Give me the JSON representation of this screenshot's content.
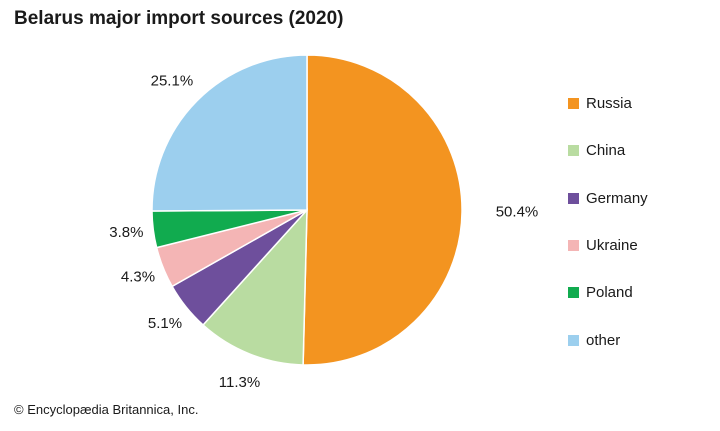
{
  "chart_data": {
    "type": "pie",
    "title": "Belarus major import sources (2020)",
    "categories": [
      "Russia",
      "China",
      "Germany",
      "Ukraine",
      "Poland",
      "other"
    ],
    "values": [
      50.4,
      11.3,
      5.1,
      4.3,
      3.8,
      25.1
    ],
    "value_labels": [
      "50.4%",
      "11.3%",
      "5.1%",
      "4.3%",
      "3.8%",
      "25.1%"
    ],
    "colors": [
      "#f39420",
      "#b9dca1",
      "#6e4f9c",
      "#f4b5b5",
      "#11ab4f",
      "#9ccfee"
    ],
    "legend_position": "right",
    "start": "12 o'clock",
    "direction": "clockwise"
  },
  "footer": {
    "credit": "© Encyclopædia Britannica, Inc."
  }
}
